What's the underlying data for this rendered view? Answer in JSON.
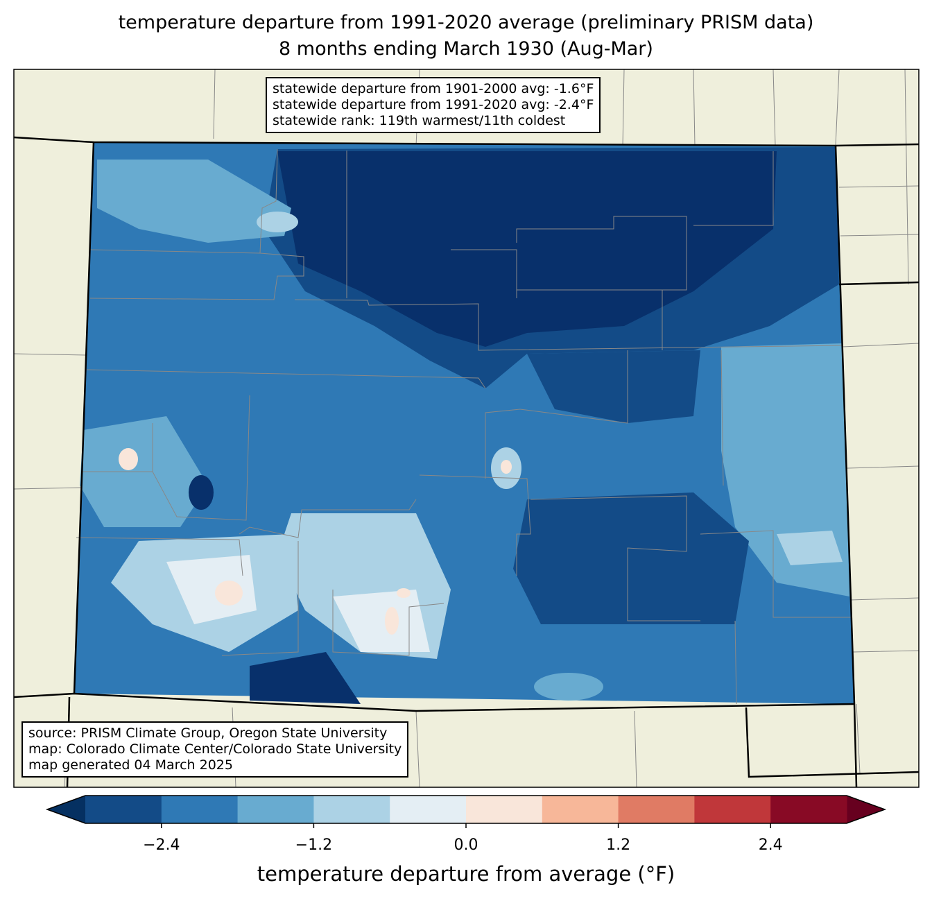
{
  "title": {
    "line1": "temperature departure from 1991-2020 average (preliminary PRISM data)",
    "line2": "8 months ending March 1930 (Aug-Mar)"
  },
  "stats": {
    "line1": "statewide departure from 1901-2000 avg: -1.6°F",
    "line2": "statewide departure from 1991-2020 avg: -2.4°F",
    "line3": "statewide rank: 119th warmest/11th coldest"
  },
  "source": {
    "line1": "source: PRISM Climate Group, Oregon State University",
    "line2": "map: Colorado Climate Center/Colorado State University",
    "line3": "map generated 04 March 2025"
  },
  "colors": {
    "land": "#efefdc",
    "under": "#053061",
    "over": "#67001f",
    "bins": [
      "#134b87",
      "#2f79b5",
      "#68abd0",
      "#acd2e5",
      "#e4eef4",
      "#f9e6da",
      "#f7b799",
      "#e07b64",
      "#c0373a",
      "#880a25"
    ]
  },
  "chart_data": {
    "type": "heatmap",
    "title": "temperature departure from 1991-2020 average (preliminary PRISM data)",
    "subtitle": "8 months ending March 1930 (Aug-Mar)",
    "region": "Colorado",
    "colorbar": {
      "label": "temperature departure from average (°F)",
      "levels": [
        -3.0,
        -2.4,
        -1.8,
        -1.2,
        -0.6,
        0.0,
        0.6,
        1.2,
        1.8,
        2.4,
        3.0
      ],
      "ticks": [
        "−2.4",
        "−1.2",
        "0.0",
        "1.2",
        "2.4"
      ],
      "tick_values": [
        -2.4,
        -1.2,
        0.0,
        1.2,
        2.4
      ],
      "extend": "both"
    }
  }
}
